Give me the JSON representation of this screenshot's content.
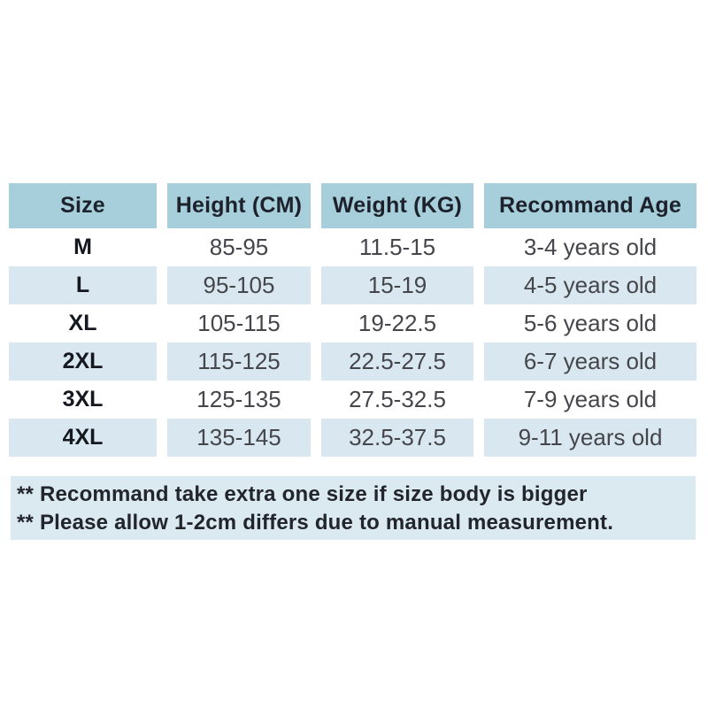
{
  "colors": {
    "header-bg": "#a6cedb",
    "stripe-bg": "#d9e8f0",
    "notes-bg": "#dbe9f1",
    "header-text": "#1d212b",
    "size-text": "#15181f",
    "value-text": "#45464b",
    "notes-text": "#23252d",
    "page-bg": "#ffffff"
  },
  "table": {
    "columns": [
      "Size",
      "Height (CM)",
      "Weight (KG)",
      "Recommand Age"
    ],
    "rows": [
      {
        "size": "M",
        "height": "85-95",
        "weight": "11.5-15",
        "age": "3-4 years old"
      },
      {
        "size": "L",
        "height": "95-105",
        "weight": "15-19",
        "age": "4-5 years old"
      },
      {
        "size": "XL",
        "height": "105-115",
        "weight": "19-22.5",
        "age": "5-6 years old"
      },
      {
        "size": "2XL",
        "height": "115-125",
        "weight": "22.5-27.5",
        "age": "6-7 years old"
      },
      {
        "size": "3XL",
        "height": "125-135",
        "weight": "27.5-32.5",
        "age": "7-9 years old"
      },
      {
        "size": "4XL",
        "height": "135-145",
        "weight": "32.5-37.5",
        "age": "9-11 years old"
      }
    ]
  },
  "notes": [
    "** Recommand take extra one size if size body is bigger",
    "** Please allow 1-2cm differs due to manual measurement."
  ]
}
